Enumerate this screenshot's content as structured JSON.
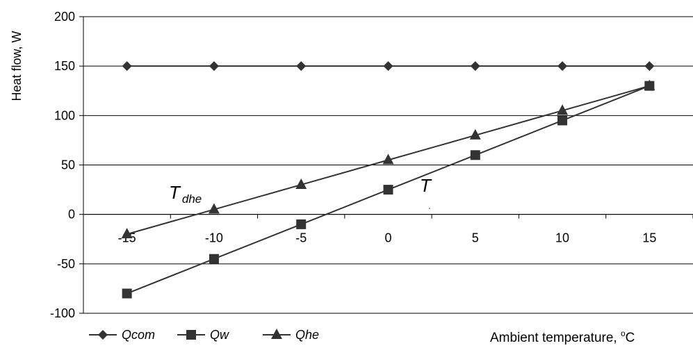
{
  "chart_data": {
    "type": "line",
    "x": [
      -15,
      -10,
      -5,
      0,
      5,
      10,
      15
    ],
    "series": [
      {
        "name": "Qcom",
        "marker": "diamond",
        "values": [
          150,
          150,
          150,
          150,
          150,
          150,
          150
        ]
      },
      {
        "name": "Qw",
        "marker": "square",
        "values": [
          -80,
          -45,
          -10,
          25,
          60,
          95,
          130
        ]
      },
      {
        "name": "Qhe",
        "marker": "triangle",
        "values": [
          -20,
          5,
          30,
          55,
          80,
          105,
          130
        ]
      }
    ],
    "xlabel": "Ambient temperature, °C",
    "ylabel": "Heat flow, W",
    "ylim": [
      -100,
      200
    ],
    "yticks": [
      -100,
      -50,
      0,
      50,
      100,
      150,
      200
    ],
    "xlim": [
      -17.5,
      17.5
    ],
    "grid": "horizontal",
    "legend": "bottom-left",
    "annotations": [
      {
        "text": "T",
        "subscript": "dhe"
      },
      {
        "text": "T",
        "subscript": "'"
      }
    ],
    "colors": {
      "series": "#333333",
      "axis": "#000000",
      "grid": "#000000"
    }
  }
}
